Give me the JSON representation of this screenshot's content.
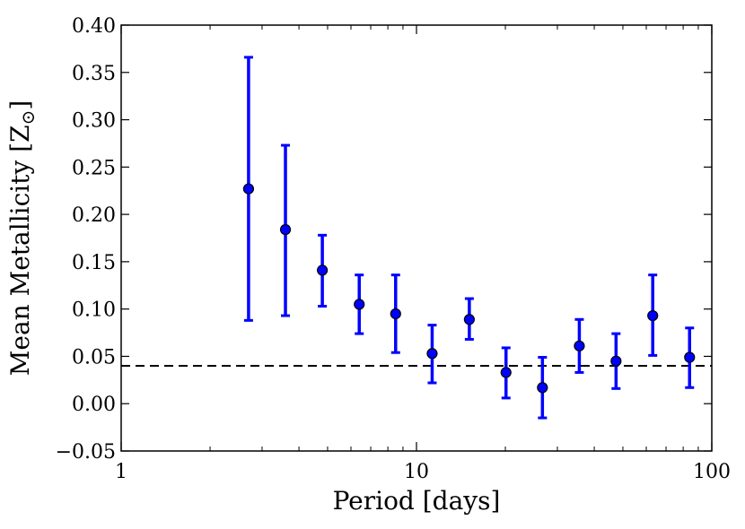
{
  "chart_data": {
    "type": "scatter",
    "xscale": "log",
    "xlim": [
      1,
      100
    ],
    "ylim": [
      -0.05,
      0.4
    ],
    "xlabel": "Period [days]",
    "ylabel": "Mean Metallicity [Z",
    "ylabel_sub": "⊙",
    "ylabel_end": "]",
    "x_ticks": [
      1,
      10,
      100
    ],
    "x_tick_labels": [
      "1",
      "10",
      "100"
    ],
    "y_ticks": [
      -0.05,
      0.0,
      0.05,
      0.1,
      0.15,
      0.2,
      0.25,
      0.3,
      0.35,
      0.4
    ],
    "y_tick_labels": [
      "−0.05",
      "0.00",
      "0.05",
      "0.10",
      "0.15",
      "0.20",
      "0.25",
      "0.30",
      "0.35",
      "0.40"
    ],
    "reference_line": {
      "y": 0.04,
      "style": "dashed",
      "color": "#000000"
    },
    "series": [
      {
        "color": "#0000ff",
        "points": [
          {
            "x": 2.7,
            "y": 0.227,
            "ylow": 0.088,
            "yhigh": 0.366
          },
          {
            "x": 3.6,
            "y": 0.184,
            "ylow": 0.093,
            "yhigh": 0.273
          },
          {
            "x": 4.8,
            "y": 0.141,
            "ylow": 0.103,
            "yhigh": 0.178
          },
          {
            "x": 6.4,
            "y": 0.105,
            "ylow": 0.074,
            "yhigh": 0.136
          },
          {
            "x": 8.5,
            "y": 0.095,
            "ylow": 0.054,
            "yhigh": 0.136
          },
          {
            "x": 11.3,
            "y": 0.053,
            "ylow": 0.022,
            "yhigh": 0.083
          },
          {
            "x": 15.1,
            "y": 0.089,
            "ylow": 0.068,
            "yhigh": 0.111
          },
          {
            "x": 20.1,
            "y": 0.033,
            "ylow": 0.006,
            "yhigh": 0.059
          },
          {
            "x": 26.7,
            "y": 0.017,
            "ylow": -0.015,
            "yhigh": 0.049
          },
          {
            "x": 35.6,
            "y": 0.061,
            "ylow": 0.033,
            "yhigh": 0.089
          },
          {
            "x": 47.4,
            "y": 0.045,
            "ylow": 0.016,
            "yhigh": 0.074
          },
          {
            "x": 63.1,
            "y": 0.093,
            "ylow": 0.051,
            "yhigh": 0.136
          },
          {
            "x": 84.1,
            "y": 0.049,
            "ylow": 0.017,
            "yhigh": 0.08
          }
        ]
      }
    ]
  }
}
